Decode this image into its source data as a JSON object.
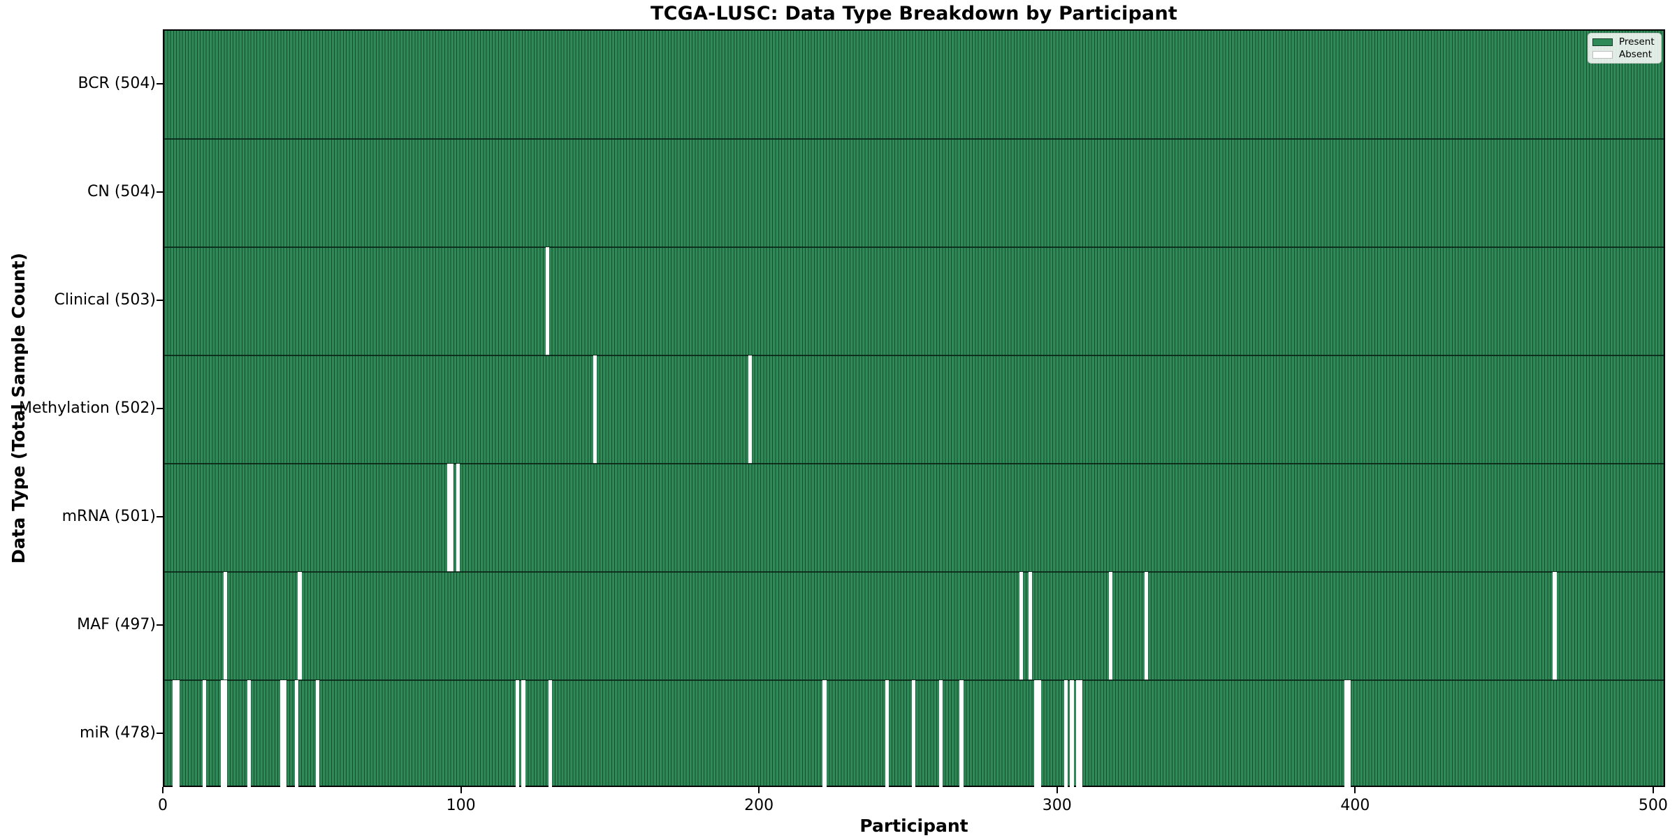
{
  "title": "TCGA-LUSC: Data Type Breakdown by Participant",
  "xlabel": "Participant",
  "ylabel": "Data Type (Total Sample Count)",
  "legend": {
    "present_label": "Present",
    "absent_label": "Absent"
  },
  "colors": {
    "present": "#2e8b57",
    "absent": "#ffffff",
    "bar_edge": "#1b4a2f",
    "row_divider": "#0b2316"
  },
  "chart_data": {
    "type": "heatmap",
    "title": "TCGA-LUSC: Data Type Breakdown by Participant",
    "xlabel": "Participant",
    "ylabel": "Data Type (Total Sample Count)",
    "legend_entries": [
      "Present",
      "Absent"
    ],
    "legend_position": "upper right",
    "participants": 504,
    "x_range": [
      0,
      504
    ],
    "x_ticks": [
      0,
      100,
      200,
      300,
      400,
      500
    ],
    "rows": [
      {
        "label": "BCR (504)",
        "name": "BCR",
        "total": 504,
        "absent": []
      },
      {
        "label": "CN (504)",
        "name": "CN",
        "total": 504,
        "absent": []
      },
      {
        "label": "Clinical (503)",
        "name": "Clinical",
        "total": 503,
        "absent": [
          128
        ]
      },
      {
        "label": "Methylation (502)",
        "name": "Methylation",
        "total": 502,
        "absent": [
          144,
          196
        ]
      },
      {
        "label": "mRNA (501)",
        "name": "mRNA",
        "total": 501,
        "absent": [
          95,
          96,
          98
        ]
      },
      {
        "label": "MAF (497)",
        "name": "MAF",
        "total": 497,
        "absent": [
          20,
          45,
          287,
          290,
          317,
          329,
          466
        ]
      },
      {
        "label": "miR (478)",
        "name": "miR",
        "total": 478,
        "absent": [
          3,
          4,
          13,
          19,
          20,
          28,
          39,
          40,
          44,
          51,
          118,
          120,
          129,
          221,
          242,
          251,
          260,
          267,
          292,
          293,
          302,
          304,
          306,
          307,
          396,
          397
        ]
      }
    ]
  }
}
